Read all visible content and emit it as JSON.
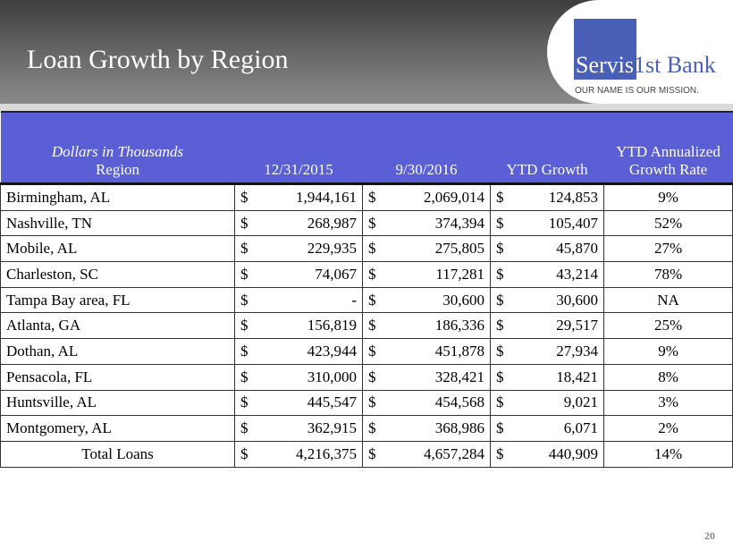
{
  "header": {
    "title": "Loan Growth by Region",
    "logo_part1": "Servis",
    "logo_part2": "1st Bank",
    "tagline": "OUR NAME IS OUR MISSION."
  },
  "table": {
    "subtitle": "Dollars in Thousands",
    "columns": [
      "Region",
      "12/31/2015",
      "9/30/2016",
      "YTD Growth",
      "YTD Annualized",
      "Growth Rate"
    ],
    "rows": [
      [
        "Birmingham, AL",
        "$",
        "1,944,161",
        "$",
        "2,069,014",
        "$",
        "124,853",
        "9%"
      ],
      [
        "Nashville, TN",
        "$",
        "268,987",
        "$",
        "374,394",
        "$",
        "105,407",
        "52%"
      ],
      [
        "Mobile, AL",
        "$",
        "229,935",
        "$",
        "275,805",
        "$",
        "45,870",
        "27%"
      ],
      [
        "Charleston, SC",
        "$",
        "74,067",
        "$",
        "117,281",
        "$",
        "43,214",
        "78%"
      ],
      [
        "Tampa Bay area, FL",
        "$",
        "-",
        "$",
        "30,600",
        "$",
        "30,600",
        "NA"
      ],
      [
        "Atlanta, GA",
        "$",
        "156,819",
        "$",
        "186,336",
        "$",
        "29,517",
        "25%"
      ],
      [
        "Dothan, AL",
        "$",
        "423,944",
        "$",
        "451,878",
        "$",
        "27,934",
        "9%"
      ],
      [
        "Pensacola, FL",
        "$",
        "310,000",
        "$",
        "328,421",
        "$",
        "18,421",
        "8%"
      ],
      [
        "Huntsville, AL",
        "$",
        "445,547",
        "$",
        "454,568",
        "$",
        "9,021",
        "3%"
      ],
      [
        "Montgomery, AL",
        "$",
        "362,915",
        "$",
        "368,986",
        "$",
        "6,071",
        "2%"
      ],
      [
        "Total Loans",
        "$",
        "4,216,375",
        "$",
        "4,657,284",
        "$",
        "440,909",
        "14%"
      ]
    ]
  },
  "page_number": "20"
}
